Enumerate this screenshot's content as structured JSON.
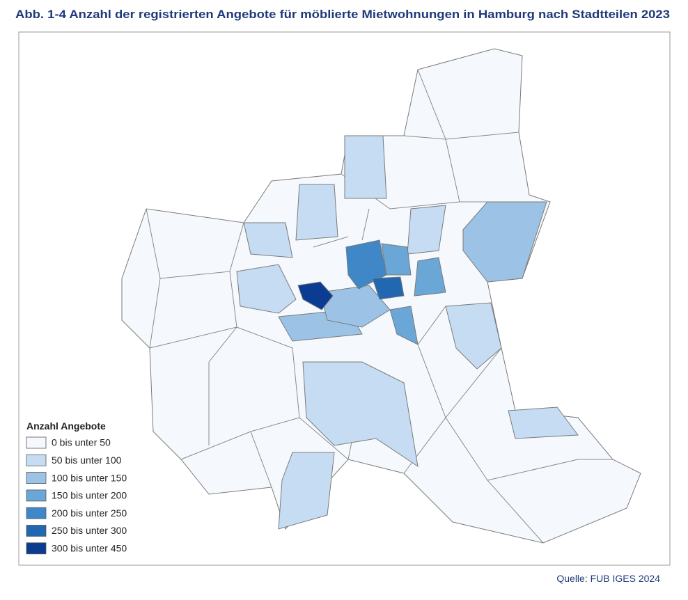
{
  "header": {
    "title": "Abb. 1-4 Anzahl der registrierten Angebote für möblierte Mietwohnungen in Hamburg nach Stadtteilen 2023"
  },
  "legend": {
    "title": "Anzahl Angebote",
    "items": [
      {
        "label": "0 bis unter 50",
        "color": "#f5f9fe"
      },
      {
        "label": "50 bis unter 100",
        "color": "#c5dcf2"
      },
      {
        "label": "100 bis unter 150",
        "color": "#9cc3e6"
      },
      {
        "label": "150 bis unter 200",
        "color": "#6aa7d6"
      },
      {
        "label": "200 bis unter 250",
        "color": "#3f87c6"
      },
      {
        "label": "250 bis unter 300",
        "color": "#2268b0"
      },
      {
        "label": "300 bis unter 450",
        "color": "#0a3d91"
      }
    ]
  },
  "footer": {
    "source": "Quelle: FUB IGES 2024"
  }
}
